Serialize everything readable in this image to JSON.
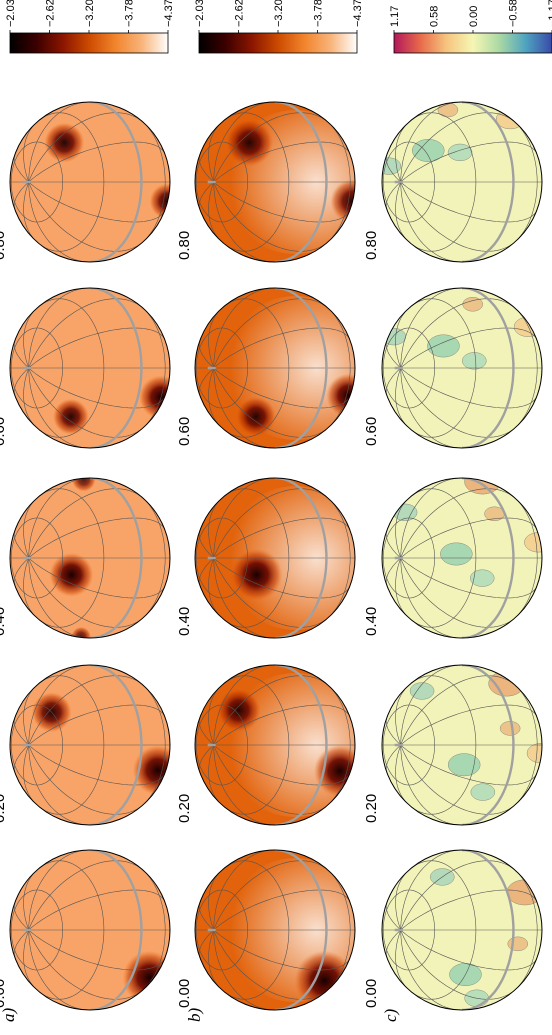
{
  "figure": {
    "panels": [
      {
        "label": "a)",
        "colorbar": {
          "ticks": [
            "−2.03",
            "−2.62",
            "−3.20",
            "−3.78",
            "−4.37"
          ],
          "colormap": [
            "#000000",
            "#3b0000",
            "#8a1500",
            "#cc4a00",
            "#f2842c",
            "#f8b47a",
            "#ffffff"
          ]
        },
        "sphere_base_color": "#f8a468",
        "phases": [
          {
            "phase": "0.00",
            "spots": [
              {
                "lat": -22,
                "lon": 40,
                "r": 27,
                "depth": 1.0
              },
              {
                "lat": -35,
                "lon": -70,
                "r": 18,
                "depth": 0.9
              }
            ]
          },
          {
            "phase": "0.20",
            "spots": [
              {
                "lat": -22,
                "lon": 20,
                "r": 25,
                "depth": 1.0
              },
              {
                "lat": 60,
                "lon": -55,
                "r": 20,
                "depth": 0.95
              }
            ]
          },
          {
            "phase": "0.40",
            "spots": [
              {
                "lat": 52,
                "lon": 20,
                "r": 22,
                "depth": 1.0
              },
              {
                "lat": 10,
                "lon": -85,
                "r": 12,
                "depth": 0.8
              },
              {
                "lat": 10,
                "lon": 88,
                "r": 10,
                "depth": 0.8
              }
            ]
          },
          {
            "phase": "0.60",
            "spots": [
              {
                "lat": -30,
                "lon": 25,
                "r": 22,
                "depth": 1.0
              },
              {
                "lat": 42,
                "lon": 55,
                "r": 18,
                "depth": 0.95
              }
            ]
          },
          {
            "phase": "0.80",
            "spots": [
              {
                "lat": 50,
                "lon": -50,
                "r": 20,
                "depth": 0.95
              },
              {
                "lat": -45,
                "lon": 20,
                "r": 18,
                "depth": 0.95
              }
            ]
          }
        ]
      },
      {
        "label": "b)",
        "colorbar": {
          "ticks": [
            "−2.03",
            "−2.62",
            "−3.20",
            "−3.78",
            "−4.37"
          ],
          "colormap": [
            "#000000",
            "#3b0000",
            "#8a1500",
            "#cc4a00",
            "#f2842c",
            "#f8b47a",
            "#ffffff"
          ]
        },
        "sphere_base_color": "#e2630c",
        "phases": [
          {
            "phase": "0.00",
            "spots": [
              {
                "lat": -10,
                "lon": 40,
                "r": 30,
                "depth": 1.0
              },
              {
                "lat": -40,
                "lon": -70,
                "r": 22,
                "depth": 0.85
              }
            ]
          },
          {
            "phase": "0.20",
            "spots": [
              {
                "lat": -18,
                "lon": 20,
                "r": 26,
                "depth": 1.0
              },
              {
                "lat": 58,
                "lon": -55,
                "r": 22,
                "depth": 0.95
              }
            ]
          },
          {
            "phase": "0.40",
            "spots": [
              {
                "lat": 52,
                "lon": 20,
                "r": 26,
                "depth": 1.0
              }
            ]
          },
          {
            "phase": "0.60",
            "spots": [
              {
                "lat": -35,
                "lon": 25,
                "r": 22,
                "depth": 1.0
              },
              {
                "lat": 42,
                "lon": 55,
                "r": 20,
                "depth": 0.95
              }
            ]
          },
          {
            "phase": "0.80",
            "spots": [
              {
                "lat": 50,
                "lon": -50,
                "r": 24,
                "depth": 0.95
              },
              {
                "lat": -45,
                "lon": 20,
                "r": 22,
                "depth": 0.95
              }
            ]
          }
        ]
      },
      {
        "label": "c)",
        "colorbar": {
          "ticks": [
            "1.17",
            "0.58",
            "0.00",
            "−0.58",
            "−1.17"
          ],
          "colormap": [
            "#b2185c",
            "#e86a4a",
            "#f6c57f",
            "#f6f6b4",
            "#abd9a5",
            "#4fa3c0",
            "#3a4aa8"
          ]
        },
        "sphere_base_color": "#f2f3b8",
        "phases": [
          {
            "phase": "0.00"
          },
          {
            "phase": "0.20"
          },
          {
            "phase": "0.40"
          },
          {
            "phase": "0.60"
          },
          {
            "phase": "0.80"
          }
        ]
      }
    ],
    "colors": {
      "grid": "#555555",
      "equator": "#a0a0a0",
      "outline": "#000000"
    }
  }
}
